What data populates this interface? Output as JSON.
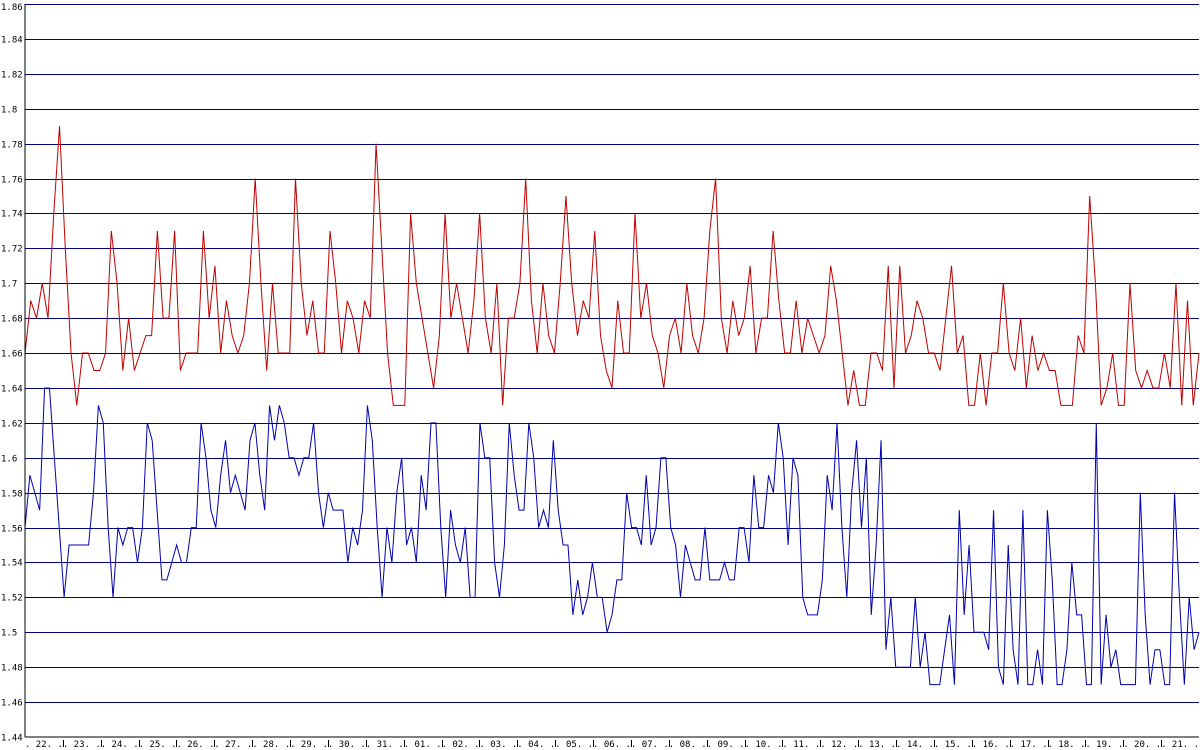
{
  "chart_data": {
    "type": "line",
    "title": "",
    "xlabel": "",
    "ylabel": "",
    "ylim": [
      1.44,
      1.86
    ],
    "grid": true,
    "legend": "none",
    "y_ticks": [
      "1.44",
      "1.46",
      "1.48",
      "1.5",
      "1.52",
      "1.54",
      "1.56",
      "1.58",
      "1.6",
      "1.62",
      "1.64",
      "1.66",
      "1.68",
      "1.7",
      "1.72",
      "1.74",
      "1.76",
      "1.78",
      "1.8",
      "1.82",
      "1.84",
      "1.86"
    ],
    "x_ticks": [
      "22.",
      "23.",
      "24.",
      "25.",
      "26.",
      "27.",
      "28.",
      "29.",
      "30.",
      "31.",
      "01.",
      "02.",
      "03.",
      "04.",
      "05.",
      "06.",
      "07.",
      "08.",
      "09.",
      "10.",
      "11.",
      "12.",
      "13.",
      "14.",
      "15.",
      "16.",
      "17.",
      "18.",
      "19.",
      "20.",
      "21."
    ],
    "colors": {
      "grid": "#000080",
      "upper": "#c00000",
      "lower": "#0000b0"
    },
    "series": [
      {
        "key": "upper",
        "values": [
          1.66,
          1.69,
          1.68,
          1.7,
          1.68,
          1.74,
          1.79,
          1.72,
          1.66,
          1.63,
          1.66,
          1.66,
          1.65,
          1.65,
          1.66,
          1.73,
          1.7,
          1.65,
          1.68,
          1.65,
          1.66,
          1.67,
          1.67,
          1.73,
          1.68,
          1.68,
          1.73,
          1.65,
          1.66,
          1.66,
          1.66,
          1.73,
          1.68,
          1.71,
          1.66,
          1.69,
          1.67,
          1.66,
          1.67,
          1.7,
          1.76,
          1.7,
          1.65,
          1.7,
          1.66,
          1.66,
          1.66,
          1.76,
          1.7,
          1.67,
          1.69,
          1.66,
          1.66,
          1.73,
          1.7,
          1.66,
          1.69,
          1.68,
          1.66,
          1.69,
          1.68,
          1.78,
          1.72,
          1.66,
          1.63,
          1.63,
          1.63,
          1.74,
          1.7,
          1.68,
          1.66,
          1.64,
          1.67,
          1.74,
          1.68,
          1.7,
          1.68,
          1.66,
          1.69,
          1.74,
          1.68,
          1.66,
          1.7,
          1.63,
          1.68,
          1.68,
          1.7,
          1.76,
          1.69,
          1.66,
          1.7,
          1.67,
          1.66,
          1.7,
          1.75,
          1.7,
          1.67,
          1.69,
          1.68,
          1.73,
          1.67,
          1.65,
          1.64,
          1.69,
          1.66,
          1.66,
          1.74,
          1.68,
          1.7,
          1.67,
          1.66,
          1.64,
          1.67,
          1.68,
          1.66,
          1.7,
          1.67,
          1.66,
          1.68,
          1.73,
          1.76,
          1.68,
          1.66,
          1.69,
          1.67,
          1.68,
          1.71,
          1.66,
          1.68,
          1.68,
          1.73,
          1.69,
          1.66,
          1.66,
          1.69,
          1.66,
          1.68,
          1.67,
          1.66,
          1.67,
          1.71,
          1.69,
          1.66,
          1.63,
          1.65,
          1.63,
          1.63,
          1.66,
          1.66,
          1.65,
          1.71,
          1.64,
          1.71,
          1.66,
          1.67,
          1.69,
          1.68,
          1.66,
          1.66,
          1.65,
          1.68,
          1.71,
          1.66,
          1.67,
          1.63,
          1.63,
          1.66,
          1.63,
          1.66,
          1.66,
          1.7,
          1.66,
          1.65,
          1.68,
          1.64,
          1.67,
          1.65,
          1.66,
          1.65,
          1.65,
          1.63,
          1.63,
          1.63,
          1.67,
          1.66,
          1.75,
          1.7,
          1.63,
          1.64,
          1.66,
          1.63,
          1.63,
          1.7,
          1.65,
          1.64,
          1.65,
          1.64,
          1.64,
          1.66,
          1.64,
          1.7,
          1.63,
          1.69,
          1.63,
          1.66
        ]
      },
      {
        "key": "lower",
        "values": [
          1.56,
          1.59,
          1.58,
          1.57,
          1.64,
          1.64,
          1.6,
          1.56,
          1.52,
          1.55,
          1.55,
          1.55,
          1.55,
          1.55,
          1.58,
          1.63,
          1.62,
          1.56,
          1.52,
          1.56,
          1.55,
          1.56,
          1.56,
          1.54,
          1.56,
          1.62,
          1.61,
          1.57,
          1.53,
          1.53,
          1.54,
          1.55,
          1.54,
          1.54,
          1.56,
          1.56,
          1.62,
          1.6,
          1.57,
          1.56,
          1.59,
          1.61,
          1.58,
          1.59,
          1.58,
          1.57,
          1.61,
          1.62,
          1.59,
          1.57,
          1.63,
          1.61,
          1.63,
          1.62,
          1.6,
          1.6,
          1.59,
          1.6,
          1.6,
          1.62,
          1.58,
          1.56,
          1.58,
          1.57,
          1.57,
          1.57,
          1.54,
          1.56,
          1.55,
          1.57,
          1.63,
          1.61,
          1.56,
          1.52,
          1.56,
          1.54,
          1.58,
          1.6,
          1.55,
          1.56,
          1.54,
          1.59,
          1.57,
          1.62,
          1.62,
          1.56,
          1.52,
          1.57,
          1.55,
          1.54,
          1.56,
          1.52,
          1.52,
          1.62,
          1.6,
          1.6,
          1.54,
          1.52,
          1.55,
          1.62,
          1.59,
          1.57,
          1.57,
          1.62,
          1.6,
          1.56,
          1.57,
          1.56,
          1.61,
          1.57,
          1.55,
          1.55,
          1.51,
          1.53,
          1.51,
          1.52,
          1.54,
          1.52,
          1.52,
          1.5,
          1.51,
          1.53,
          1.53,
          1.58,
          1.56,
          1.56,
          1.55,
          1.59,
          1.55,
          1.56,
          1.6,
          1.6,
          1.56,
          1.55,
          1.52,
          1.55,
          1.54,
          1.53,
          1.53,
          1.56,
          1.53,
          1.53,
          1.53,
          1.54,
          1.53,
          1.53,
          1.56,
          1.56,
          1.54,
          1.59,
          1.56,
          1.56,
          1.59,
          1.58,
          1.62,
          1.6,
          1.55,
          1.6,
          1.59,
          1.52,
          1.51,
          1.51,
          1.51,
          1.53,
          1.59,
          1.57,
          1.62,
          1.56,
          1.52,
          1.58,
          1.61,
          1.56,
          1.6,
          1.51,
          1.55,
          1.61,
          1.49,
          1.52,
          1.48,
          1.48,
          1.48,
          1.48,
          1.52,
          1.48,
          1.5,
          1.47,
          1.47,
          1.47,
          1.49,
          1.51,
          1.47,
          1.57,
          1.51,
          1.55,
          1.5,
          1.5,
          1.5,
          1.49,
          1.57,
          1.48,
          1.47,
          1.55,
          1.49,
          1.47,
          1.57,
          1.47,
          1.47,
          1.49,
          1.47,
          1.57,
          1.53,
          1.47,
          1.47,
          1.49,
          1.54,
          1.51,
          1.51,
          1.47,
          1.47,
          1.62,
          1.47,
          1.51,
          1.48,
          1.49,
          1.47,
          1.47,
          1.47,
          1.47,
          1.58,
          1.51,
          1.47,
          1.49,
          1.49,
          1.47,
          1.47,
          1.58,
          1.52,
          1.47,
          1.52,
          1.49,
          1.5
        ]
      }
    ]
  }
}
